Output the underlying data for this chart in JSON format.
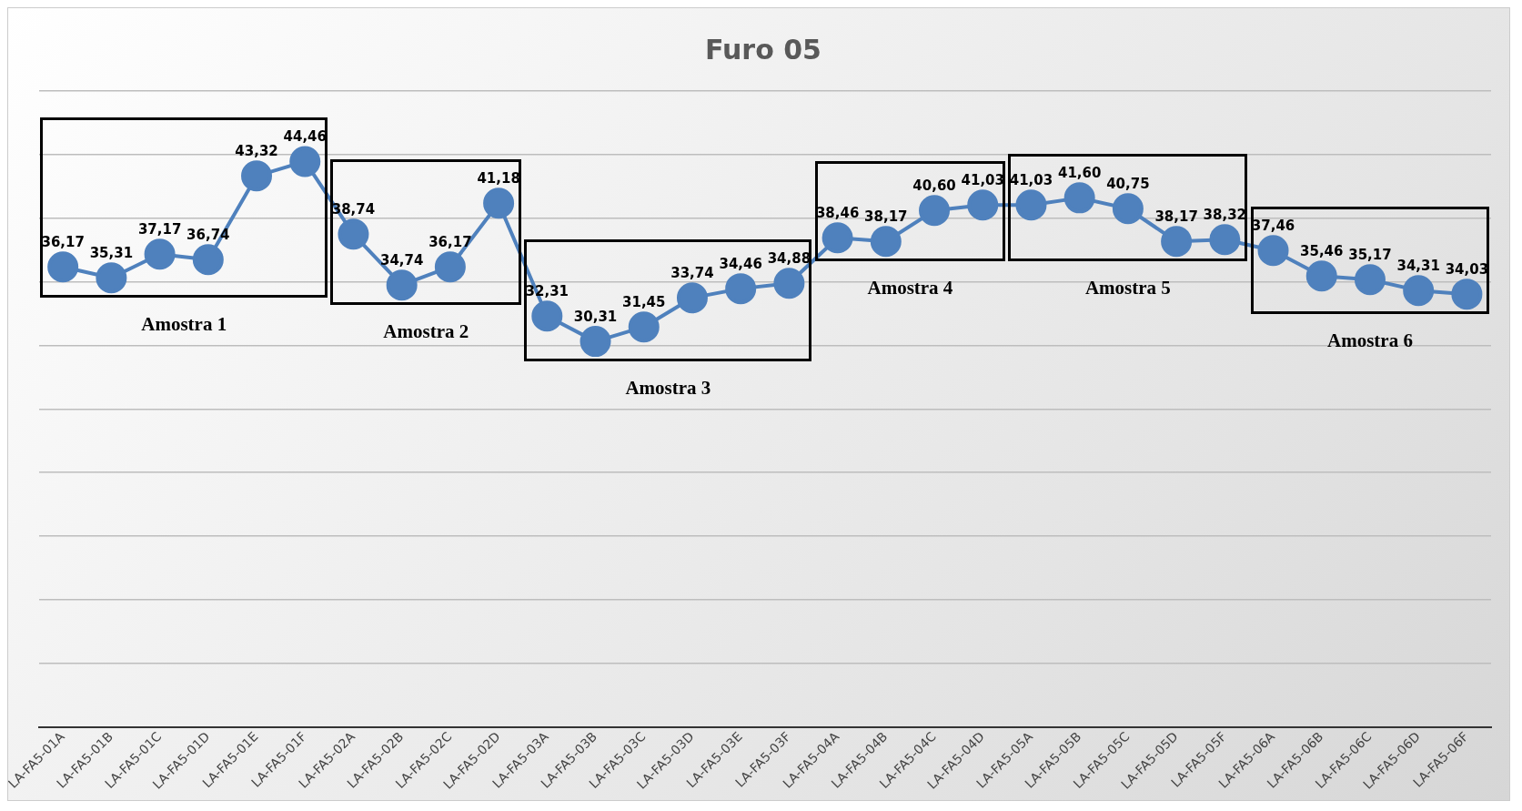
{
  "chart_data": {
    "type": "line",
    "title": "Furo 05",
    "categories": [
      "LA-FA5-01A",
      "LA-FA5-01B",
      "LA-FA5-01C",
      "LA-FA5-01D",
      "LA-FA5-01E",
      "LA-FA5-01F",
      "LA-FA5-02A",
      "LA-FA5-02B",
      "LA-FA5-02C",
      "LA-FA5-02D",
      "LA-FA5-03A",
      "LA-FA5-03B",
      "LA-FA5-03C",
      "LA-FA5-03D",
      "LA-FA5-03E",
      "LA-FA5-03F",
      "LA-FA5-04A",
      "LA-FA5-04B",
      "LA-FA5-04C",
      "LA-FA5-04D",
      "LA-FA5-05A",
      "LA-FA5-05B",
      "LA-FA5-05C",
      "LA-FA5-05D",
      "LA-FA5-05F",
      "LA-FA5-06A",
      "LA-FA5-06B",
      "LA-FA5-06C",
      "LA-FA5-06D",
      "LA-FA5-06F"
    ],
    "series": [
      {
        "color": "#4f81bd",
        "values": [
          36.17,
          35.31,
          37.17,
          36.74,
          43.32,
          44.46,
          38.74,
          34.74,
          36.17,
          41.18,
          32.31,
          30.31,
          31.45,
          33.74,
          34.46,
          34.88,
          38.46,
          38.17,
          40.6,
          41.03,
          41.03,
          41.6,
          40.75,
          38.17,
          38.32,
          37.46,
          35.46,
          35.17,
          34.31,
          34.03
        ],
        "value_labels": [
          "36,17",
          "35,31",
          "37,17",
          "36,74",
          "43,32",
          "44,46",
          "38,74",
          "34,74",
          "36,17",
          "41,18",
          "32,31",
          "30,31",
          "31,45",
          "33,74",
          "34,46",
          "34,88",
          "38,46",
          "38,17",
          "40,60",
          "41,03",
          "41,03",
          "41,60",
          "40,75",
          "38,17",
          "38,32",
          "37,46",
          "35,46",
          "35,17",
          "34,31",
          "34,03"
        ]
      }
    ],
    "ylim": [
      0,
      50
    ],
    "yticks": [
      {
        "value": 0,
        "label": null
      },
      {
        "value": 5,
        "label": null
      },
      {
        "value": 10,
        "label": null
      },
      {
        "value": 15,
        "label": null
      },
      {
        "value": 20,
        "label": null
      },
      {
        "value": 25,
        "label": null
      },
      {
        "value": 30,
        "label": null
      },
      {
        "value": 35,
        "label": null
      },
      {
        "value": 40,
        "label": null
      },
      {
        "value": 45,
        "label": null
      },
      {
        "value": 50,
        "label": null
      }
    ],
    "tick_labels": "x",
    "grid": "y",
    "legend": false,
    "marker": "circle",
    "line_style": "solid",
    "annotations": [
      "Amostra 1",
      "Amostra 2",
      "Amostra 3",
      "Amostra 4",
      "Amostra 5",
      "Amostra 6"
    ]
  }
}
